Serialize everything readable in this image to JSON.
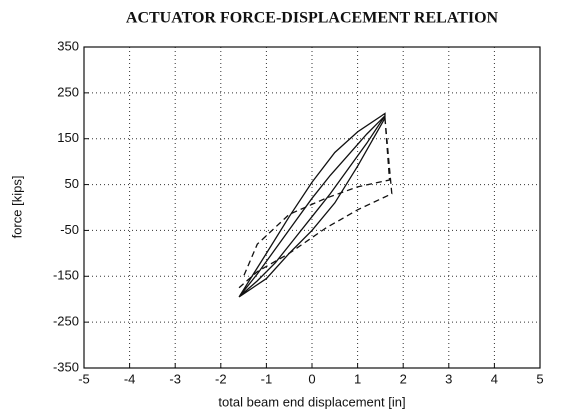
{
  "chart_data": {
    "type": "line",
    "title": "ACTUATOR FORCE-DISPLACEMENT RELATION",
    "x_label": "total beam end displacement [in]",
    "y_label": "force [kips]",
    "xlim": [
      -5,
      5
    ],
    "xticks": [
      -5,
      -4,
      -3,
      -2,
      -1,
      0,
      1,
      2,
      3,
      4,
      5
    ],
    "ylim": [
      -350,
      350
    ],
    "yticks": [
      -350,
      -250,
      -150,
      -50,
      50,
      150,
      250,
      350
    ],
    "grid": true,
    "series": [
      {
        "color": "#111111",
        "dash": "solid",
        "x": [
          -1.6,
          -1.2,
          -0.8,
          -0.4,
          0,
          0.4,
          0.8,
          1.2,
          1.6,
          1.5,
          1.2,
          0.8,
          0.4,
          0,
          -0.4,
          -0.8,
          -1.2,
          -1.6,
          -1.0,
          -0.5,
          0,
          0.5,
          1.0,
          1.6,
          1.6,
          1.0,
          0.5,
          0,
          -0.5,
          -1.0,
          -1.6
        ],
        "values": [
          -195,
          -145,
          -90,
          -35,
          20,
          70,
          115,
          160,
          200,
          185,
          140,
          85,
          30,
          -20,
          -70,
          -120,
          -160,
          -195,
          -100,
          -20,
          55,
          120,
          165,
          205,
          195,
          90,
          10,
          -50,
          -100,
          -155,
          -195
        ]
      },
      {
        "color": "#111111",
        "dash": "dashed",
        "x": [
          1.6,
          1.75,
          1.0,
          0.3,
          -0.5,
          -1.2,
          -1.6,
          null,
          1.6,
          1.7,
          1.0,
          0.3,
          -0.5,
          -1.2,
          -1.5
        ],
        "values": [
          195,
          30,
          -5,
          -45,
          -100,
          -140,
          -175,
          null,
          195,
          60,
          45,
          20,
          -15,
          -80,
          -150
        ]
      }
    ]
  }
}
